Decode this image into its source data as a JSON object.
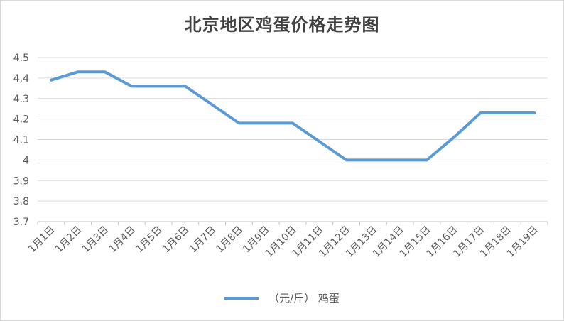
{
  "chart_data": {
    "type": "line",
    "title": "北京地区鸡蛋价格走势图",
    "xlabel": "",
    "ylabel": "",
    "categories": [
      "1月1日",
      "1月2日",
      "1月3日",
      "1月4日",
      "1月5日",
      "1月6日",
      "1月7日",
      "1月8日",
      "1月9日",
      "1月10日",
      "1月11日",
      "1月12日",
      "1月13日",
      "1月14日",
      "1月15日",
      "1月16日",
      "1月17日",
      "1月18日",
      "1月19日"
    ],
    "series": [
      {
        "name": "（元/斤） 鸡蛋",
        "values": [
          4.39,
          4.43,
          4.43,
          4.36,
          4.36,
          4.36,
          4.27,
          4.18,
          4.18,
          4.18,
          4.09,
          4.0,
          4.0,
          4.0,
          4.0,
          4.11,
          4.23,
          4.23,
          4.23
        ]
      }
    ],
    "y_ticks": [
      "4.5",
      "4.4",
      "4.3",
      "4.2",
      "4.1",
      "4",
      "3.9",
      "3.8",
      "3.7"
    ],
    "ylim": [
      3.7,
      4.5
    ],
    "grid": true,
    "legend_position": "bottom",
    "line_color": "#5b9bd5",
    "grid_color": "#d9d9d9"
  }
}
